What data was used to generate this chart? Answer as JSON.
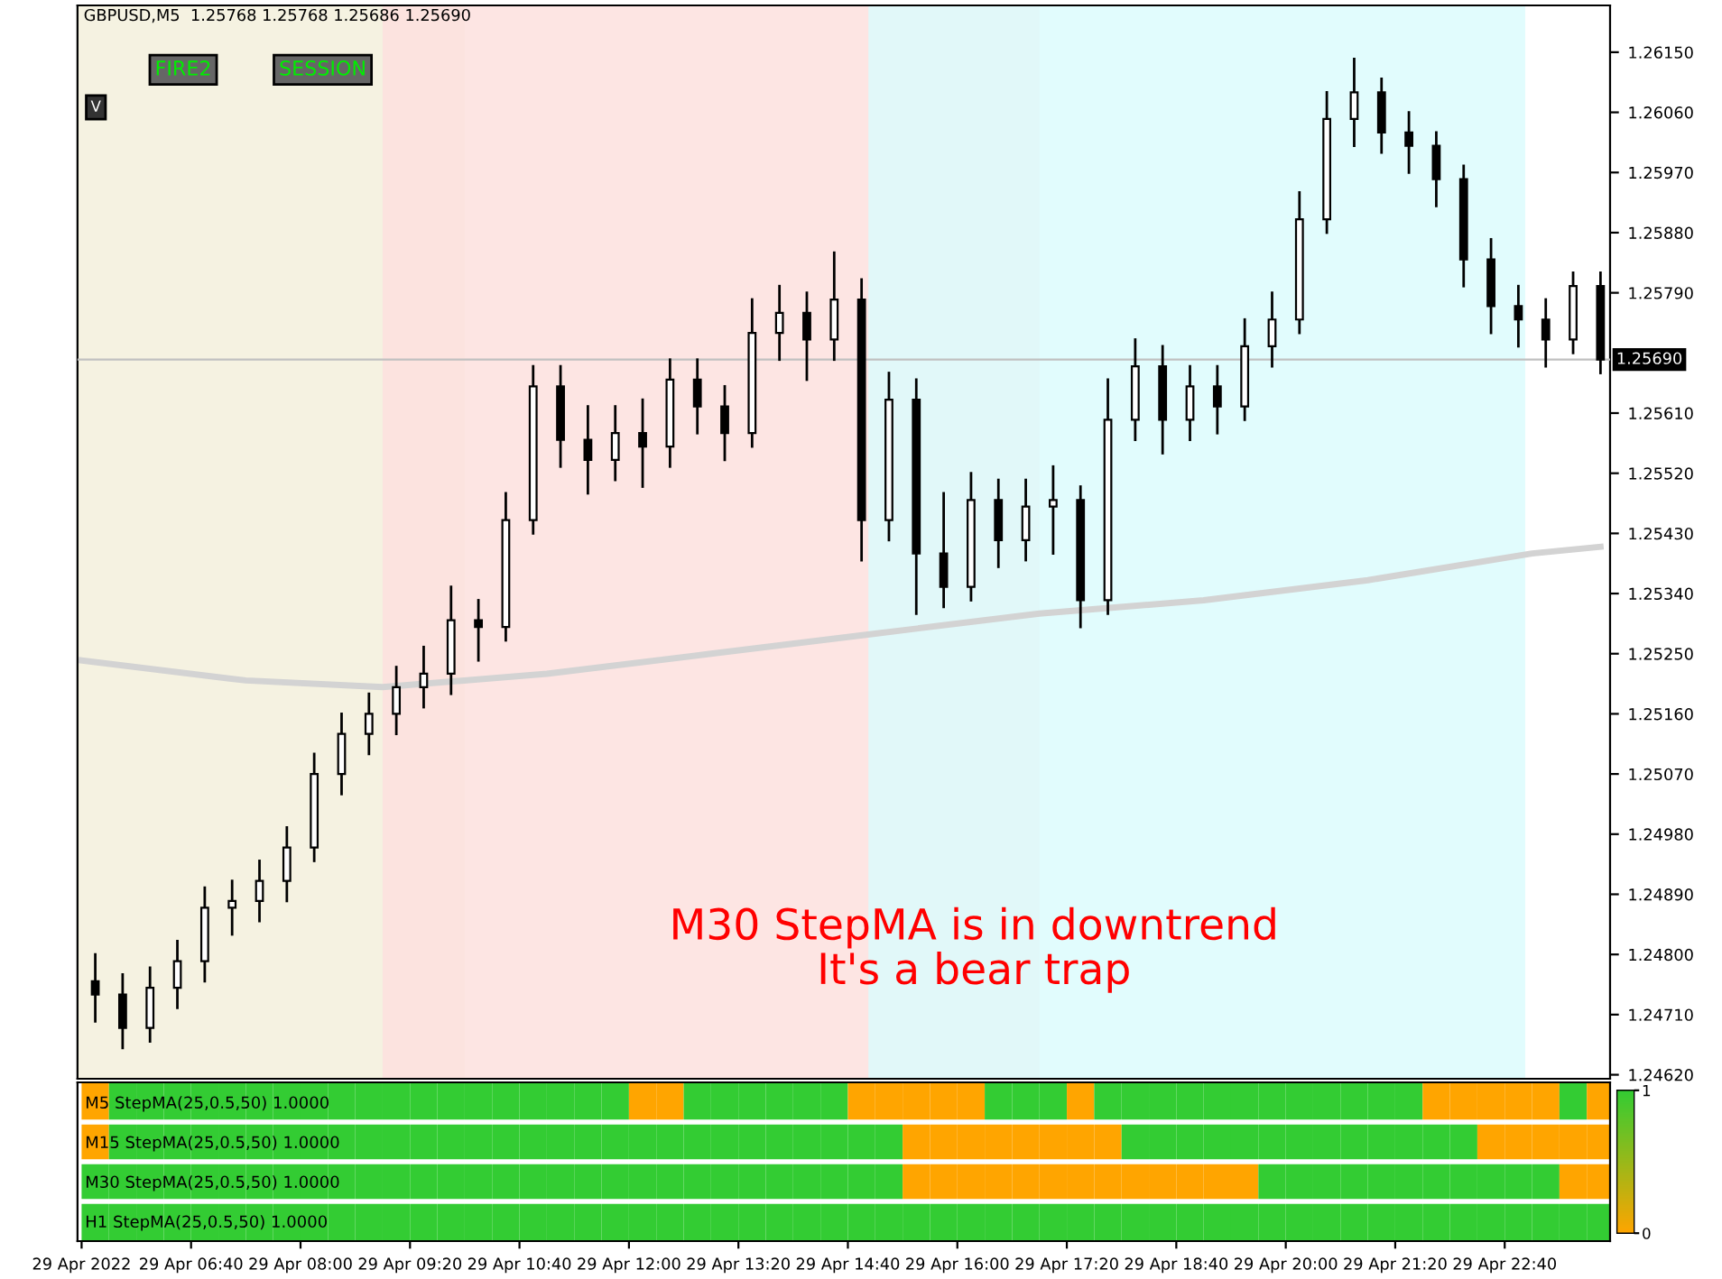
{
  "chart_data": [
    {
      "type": "candlestick",
      "title": "GBPUSD,M5  1.25768 1.25768 1.25686 1.25690",
      "annotations": [
        "FIRE2",
        "SESSION",
        "V",
        "M30 StepMA is in downtrend\nIt's a bear trap"
      ],
      "x": [
        "2022-04-29T05:30",
        "2022-04-29T05:50",
        "2022-04-29T06:10",
        "2022-04-29T06:30",
        "2022-04-29T06:50",
        "2022-04-29T07:10",
        "2022-04-29T07:30",
        "2022-04-29T07:50",
        "2022-04-29T08:10",
        "2022-04-29T08:30",
        "2022-04-29T08:50",
        "2022-04-29T09:10",
        "2022-04-29T09:30",
        "2022-04-29T09:50",
        "2022-04-29T10:10",
        "2022-04-29T10:30",
        "2022-04-29T10:50",
        "2022-04-29T11:10",
        "2022-04-29T11:30",
        "2022-04-29T11:50",
        "2022-04-29T12:10",
        "2022-04-29T12:30",
        "2022-04-29T12:50",
        "2022-04-29T13:10",
        "2022-04-29T13:30",
        "2022-04-29T13:50",
        "2022-04-29T14:10",
        "2022-04-29T14:30",
        "2022-04-29T14:50",
        "2022-04-29T15:10",
        "2022-04-29T15:30",
        "2022-04-29T15:50",
        "2022-04-29T16:10",
        "2022-04-29T16:30",
        "2022-04-29T16:50",
        "2022-04-29T17:10",
        "2022-04-29T17:30",
        "2022-04-29T17:50",
        "2022-04-29T18:10",
        "2022-04-29T18:30",
        "2022-04-29T18:50",
        "2022-04-29T19:10",
        "2022-04-29T19:30",
        "2022-04-29T19:50",
        "2022-04-29T20:10",
        "2022-04-29T20:30",
        "2022-04-29T20:50",
        "2022-04-29T21:10",
        "2022-04-29T21:30",
        "2022-04-29T21:50",
        "2022-04-29T22:10",
        "2022-04-29T22:30",
        "2022-04-29T22:50",
        "2022-04-29T23:10",
        "2022-04-29T23:30",
        "2022-04-29T23:50"
      ],
      "ohlc": [
        [
          1.2476,
          1.248,
          1.247,
          1.2474
        ],
        [
          1.2474,
          1.2477,
          1.2466,
          1.2469
        ],
        [
          1.2469,
          1.2478,
          1.2467,
          1.2475
        ],
        [
          1.2475,
          1.2482,
          1.2472,
          1.2479
        ],
        [
          1.2479,
          1.249,
          1.2476,
          1.2487
        ],
        [
          1.2487,
          1.2491,
          1.2483,
          1.2488
        ],
        [
          1.2488,
          1.2494,
          1.2485,
          1.2491
        ],
        [
          1.2491,
          1.2499,
          1.2488,
          1.2496
        ],
        [
          1.2496,
          1.251,
          1.2494,
          1.2507
        ],
        [
          1.2507,
          1.2516,
          1.2504,
          1.2513
        ],
        [
          1.2513,
          1.2519,
          1.251,
          1.2516
        ],
        [
          1.2516,
          1.2523,
          1.2513,
          1.252
        ],
        [
          1.252,
          1.2526,
          1.2517,
          1.2522
        ],
        [
          1.2522,
          1.2535,
          1.2519,
          1.253
        ],
        [
          1.253,
          1.2533,
          1.2524,
          1.2529
        ],
        [
          1.2529,
          1.2549,
          1.2527,
          1.2545
        ],
        [
          1.2545,
          1.2568,
          1.2543,
          1.2565
        ],
        [
          1.2565,
          1.2568,
          1.2553,
          1.2557
        ],
        [
          1.2557,
          1.2562,
          1.2549,
          1.2554
        ],
        [
          1.2554,
          1.2562,
          1.2551,
          1.2558
        ],
        [
          1.2558,
          1.2563,
          1.255,
          1.2556
        ],
        [
          1.2556,
          1.2569,
          1.2553,
          1.2566
        ],
        [
          1.2566,
          1.2569,
          1.2558,
          1.2562
        ],
        [
          1.2562,
          1.2565,
          1.2554,
          1.2558
        ],
        [
          1.2558,
          1.2578,
          1.2556,
          1.2573
        ],
        [
          1.2573,
          1.258,
          1.2569,
          1.2576
        ],
        [
          1.2576,
          1.2579,
          1.2566,
          1.2572
        ],
        [
          1.2572,
          1.2585,
          1.2569,
          1.2578
        ],
        [
          1.2578,
          1.2581,
          1.2539,
          1.2545
        ],
        [
          1.2545,
          1.2567,
          1.2542,
          1.2563
        ],
        [
          1.2563,
          1.2566,
          1.2531,
          1.254
        ],
        [
          1.254,
          1.2549,
          1.2532,
          1.2535
        ],
        [
          1.2535,
          1.2552,
          1.2533,
          1.2548
        ],
        [
          1.2548,
          1.2551,
          1.2538,
          1.2542
        ],
        [
          1.2542,
          1.2551,
          1.2539,
          1.2547
        ],
        [
          1.2547,
          1.2553,
          1.254,
          1.2548
        ],
        [
          1.2548,
          1.255,
          1.2529,
          1.2533
        ],
        [
          1.2533,
          1.2566,
          1.2531,
          1.256
        ],
        [
          1.256,
          1.2572,
          1.2557,
          1.2568
        ],
        [
          1.2568,
          1.2571,
          1.2555,
          1.256
        ],
        [
          1.256,
          1.2568,
          1.2557,
          1.2565
        ],
        [
          1.2565,
          1.2568,
          1.2558,
          1.2562
        ],
        [
          1.2562,
          1.2575,
          1.256,
          1.2571
        ],
        [
          1.2571,
          1.2579,
          1.2568,
          1.2575
        ],
        [
          1.2575,
          1.2594,
          1.2573,
          1.259
        ],
        [
          1.259,
          1.2609,
          1.2588,
          1.2605
        ],
        [
          1.2605,
          1.2614,
          1.2601,
          1.2609
        ],
        [
          1.2609,
          1.2611,
          1.26,
          1.2603
        ],
        [
          1.2603,
          1.2606,
          1.2597,
          1.2601
        ],
        [
          1.2601,
          1.2603,
          1.2592,
          1.2596
        ],
        [
          1.2596,
          1.2598,
          1.258,
          1.2584
        ],
        [
          1.2584,
          1.2587,
          1.2573,
          1.2577
        ],
        [
          1.2577,
          1.258,
          1.2571,
          1.2575
        ],
        [
          1.2575,
          1.2578,
          1.2568,
          1.2572
        ],
        [
          1.2572,
          1.2582,
          1.257,
          1.258
        ],
        [
          1.258,
          1.2582,
          1.2567,
          1.2569
        ]
      ],
      "color": "#000000",
      "series": [
        {
          "type": "line",
          "color": "#d3d3d3",
          "x": [
            "2022-04-29T05:20",
            "2022-04-29T07:20",
            "2022-04-29T09:00",
            "2022-04-29T11:00",
            "2022-04-29T13:00",
            "2022-04-29T15:00",
            "2022-04-29T17:00",
            "2022-04-29T19:00",
            "2022-04-29T21:00",
            "2022-04-29T23:00",
            "2022-04-29T23:50"
          ],
          "values": [
            1.2524,
            1.2521,
            1.252,
            1.2522,
            1.2525,
            1.2528,
            1.2531,
            1.2533,
            1.2536,
            1.254,
            1.2541
          ]
        }
      ],
      "bands": [
        {
          "axis": "x",
          "from": "2022-04-29T05:17",
          "to": "2022-04-29T10:00",
          "label": null,
          "color": "#f3f0dc"
        },
        {
          "axis": "x",
          "from": "2022-04-29T09:00",
          "to": "2022-04-29T17:00",
          "label": null,
          "color": "#fde0de"
        },
        {
          "axis": "x",
          "from": "2022-04-29T14:55",
          "to": "2022-04-29T22:55",
          "label": null,
          "color": "#dcfcfd"
        }
      ],
      "ref_lines": [
        {
          "axis": "y",
          "value": 1.2569,
          "label": "1.25690",
          "color": "#c0c0c0"
        }
      ],
      "xlim": [
        "2022-04-29T05:17",
        "2022-04-29T23:57"
      ],
      "xticks": [
        {
          "value": "2022-04-29T05:20",
          "label": "29 Apr 2022"
        },
        {
          "value": "2022-04-29T06:40",
          "label": "29 Apr 06:40"
        },
        {
          "value": "2022-04-29T08:00",
          "label": "29 Apr 08:00"
        },
        {
          "value": "2022-04-29T09:20",
          "label": "29 Apr 09:20"
        },
        {
          "value": "2022-04-29T10:40",
          "label": "29 Apr 10:40"
        },
        {
          "value": "2022-04-29T12:00",
          "label": "29 Apr 12:00"
        },
        {
          "value": "2022-04-29T13:20",
          "label": "29 Apr 13:20"
        },
        {
          "value": "2022-04-29T14:40",
          "label": "29 Apr 14:40"
        },
        {
          "value": "2022-04-29T16:00",
          "label": "29 Apr 16:00"
        },
        {
          "value": "2022-04-29T17:20",
          "label": "29 Apr 17:20"
        },
        {
          "value": "2022-04-29T18:40",
          "label": "29 Apr 18:40"
        },
        {
          "value": "2022-04-29T20:00",
          "label": "29 Apr 20:00"
        },
        {
          "value": "2022-04-29T21:20",
          "label": "29 Apr 21:20"
        },
        {
          "value": "2022-04-29T22:40",
          "label": "29 Apr 22:40"
        }
      ],
      "ylim": [
        1.24614,
        1.2622
      ],
      "yticks": [
        {
          "value": 1.2615,
          "label": "1.26150"
        },
        {
          "value": 1.2606,
          "label": "1.26060"
        },
        {
          "value": 1.2597,
          "label": "1.25970"
        },
        {
          "value": 1.2588,
          "label": "1.25880"
        },
        {
          "value": 1.2579,
          "label": "1.25790"
        },
        {
          "value": 1.2561,
          "label": "1.25610"
        },
        {
          "value": 1.2552,
          "label": "1.25520"
        },
        {
          "value": 1.2543,
          "label": "1.25430"
        },
        {
          "value": 1.2534,
          "label": "1.25340"
        },
        {
          "value": 1.2525,
          "label": "1.25250"
        },
        {
          "value": 1.2516,
          "label": "1.25160"
        },
        {
          "value": 1.2507,
          "label": "1.25070"
        },
        {
          "value": 1.2498,
          "label": "1.24980"
        },
        {
          "value": 1.2489,
          "label": "1.24890"
        },
        {
          "value": 1.248,
          "label": "1.24800"
        },
        {
          "value": 1.2471,
          "label": "1.24710"
        },
        {
          "value": 1.2462,
          "label": "1.24620"
        }
      ],
      "grid": false
    },
    {
      "type": "heatmap",
      "y_categories": [
        "M5 StepMA(25,0.5,50) 1.0000",
        "M15 StepMA(25,0.5,50) 1.0000",
        "M30 StepMA(25,0.5,50) 1.0000",
        "H1 StepMA(25,0.5,50) 1.0000"
      ],
      "colors": [
        "#ffa500",
        "#33cc33"
      ],
      "clim": [
        0,
        1
      ],
      "cticks": [
        0,
        1
      ],
      "tick_labels": "y",
      "categories": [
        null,
        null,
        null,
        null,
        null,
        null,
        null,
        null,
        null,
        null,
        null,
        null,
        null,
        null,
        null,
        null,
        null,
        null,
        null,
        null,
        null,
        null,
        null,
        null,
        null,
        null,
        null,
        null,
        null,
        null,
        null,
        null,
        null,
        null,
        null,
        null,
        null,
        null,
        null,
        null,
        null,
        null,
        null,
        null,
        null,
        null,
        null,
        null,
        null,
        null,
        null,
        null,
        null,
        null,
        null,
        null
      ],
      "cells": [
        [
          0,
          1,
          1,
          1,
          1,
          1,
          1,
          1,
          1,
          1,
          1,
          1,
          1,
          1,
          1,
          1,
          1,
          1,
          1,
          1,
          0,
          0,
          1,
          1,
          1,
          1,
          1,
          1,
          0,
          0,
          0,
          0,
          0,
          1,
          1,
          1,
          0,
          1,
          1,
          1,
          1,
          1,
          1,
          1,
          1,
          1,
          1,
          1,
          1,
          0,
          0,
          0,
          0,
          0,
          1,
          0
        ],
        [
          0,
          1,
          1,
          1,
          1,
          1,
          1,
          1,
          1,
          1,
          1,
          1,
          1,
          1,
          1,
          1,
          1,
          1,
          1,
          1,
          1,
          1,
          1,
          1,
          1,
          1,
          1,
          1,
          1,
          1,
          0,
          0,
          0,
          0,
          0,
          0,
          0,
          0,
          1,
          1,
          1,
          1,
          1,
          1,
          1,
          1,
          1,
          1,
          1,
          1,
          1,
          0,
          0,
          0,
          0,
          0
        ],
        [
          1,
          1,
          1,
          1,
          1,
          1,
          1,
          1,
          1,
          1,
          1,
          1,
          1,
          1,
          1,
          1,
          1,
          1,
          1,
          1,
          1,
          1,
          1,
          1,
          1,
          1,
          1,
          1,
          1,
          1,
          0,
          0,
          0,
          0,
          0,
          0,
          0,
          0,
          0,
          0,
          0,
          0,
          0,
          1,
          1,
          1,
          1,
          1,
          1,
          1,
          1,
          1,
          1,
          1,
          0,
          0
        ],
        [
          1,
          1,
          1,
          1,
          1,
          1,
          1,
          1,
          1,
          1,
          1,
          1,
          1,
          1,
          1,
          1,
          1,
          1,
          1,
          1,
          1,
          1,
          1,
          1,
          1,
          1,
          1,
          1,
          1,
          1,
          1,
          1,
          1,
          1,
          1,
          1,
          1,
          1,
          1,
          1,
          1,
          1,
          1,
          1,
          1,
          1,
          1,
          1,
          1,
          1,
          1,
          1,
          1,
          1,
          1,
          1
        ]
      ]
    }
  ]
}
